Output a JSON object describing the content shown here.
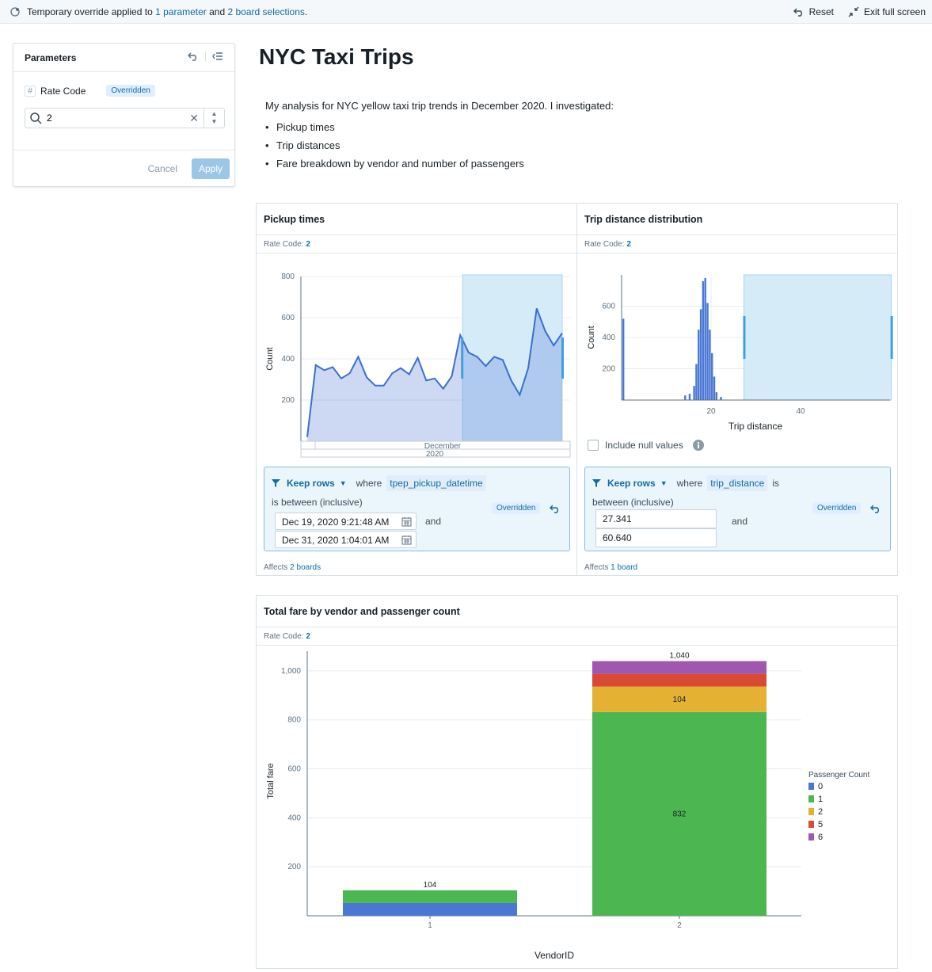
{
  "topbar": {
    "message_prefix": "Temporary override applied to ",
    "param_link": "1 parameter",
    "and": " and ",
    "board_link": "2 board selections",
    "period": ".",
    "reset": "Reset",
    "exit": "Exit full screen"
  },
  "parameters": {
    "title": "Parameters",
    "name": "Rate Code",
    "badge": "Overridden",
    "value": "2",
    "cancel": "Cancel",
    "apply": "Apply"
  },
  "page": {
    "title": "NYC Taxi Trips",
    "intro": "My analysis for NYC yellow taxi trip trends in December 2020. I investigated:",
    "bullets": [
      "Pickup times",
      "Trip distances",
      "Fare breakdown by vendor and number of passengers"
    ]
  },
  "pickup": {
    "title": "Pickup times",
    "rate_label": "Rate Code: ",
    "rate_value": "2",
    "keep": "Keep rows",
    "where": "where",
    "column": "tpep_pickup_datetime",
    "condition": "is between (inclusive)",
    "from": "Dec 19, 2020 9:21:48 AM",
    "and": "and",
    "to": "Dec 31, 2020 1:04:01 AM",
    "badge": "Overridden",
    "affects_prefix": "Affects ",
    "affects_link": "2 boards"
  },
  "distance": {
    "title": "Trip distance distribution",
    "rate_label": "Rate Code: ",
    "rate_value": "2",
    "include_null": "Include null values",
    "keep": "Keep rows",
    "where": "where",
    "column": "trip_distance",
    "is": "is",
    "condition": "between (inclusive)",
    "from": "27.341",
    "and": "and",
    "to": "60.640",
    "badge": "Overridden",
    "affects_prefix": "Affects ",
    "affects_link": "1 board"
  },
  "fare": {
    "title": "Total fare by vendor and passenger count",
    "rate_label": "Rate Code: ",
    "rate_value": "2"
  },
  "chart_data": [
    {
      "type": "area",
      "title": "Pickup times",
      "ylabel": "Count",
      "xlabel": "December",
      "x_tick_labels": [
        "December",
        "2020"
      ],
      "yticks": [
        200,
        400,
        600,
        800
      ],
      "ylim": [
        0,
        800
      ],
      "x": [
        1,
        2,
        3,
        4,
        5,
        6,
        7,
        8,
        9,
        10,
        11,
        12,
        13,
        14,
        15,
        16,
        17,
        18,
        19,
        20,
        21,
        22,
        23,
        24,
        25,
        26,
        27,
        28,
        29,
        30,
        31
      ],
      "values": [
        20,
        370,
        345,
        360,
        305,
        330,
        410,
        310,
        270,
        270,
        330,
        355,
        325,
        405,
        295,
        305,
        255,
        315,
        515,
        430,
        410,
        365,
        410,
        395,
        295,
        225,
        355,
        645,
        535,
        465,
        525
      ],
      "selection": {
        "from_day": 19,
        "to_day": 31
      }
    },
    {
      "type": "bar",
      "title": "Trip distance distribution",
      "xlabel": "Trip distance",
      "ylabel": "Count",
      "xticks": [
        20,
        40
      ],
      "yticks": [
        200,
        400,
        600
      ],
      "xlim": [
        0,
        60
      ],
      "ylim": [
        0,
        800
      ],
      "x": [
        0,
        14,
        15,
        16,
        16.5,
        17,
        17.5,
        18,
        18.5,
        19,
        19.5,
        20,
        20.5,
        21,
        22
      ],
      "values": [
        520,
        30,
        40,
        90,
        230,
        450,
        580,
        760,
        780,
        620,
        450,
        300,
        150,
        50,
        20
      ],
      "selection": {
        "from": 27.341,
        "to": 60.64
      }
    },
    {
      "type": "bar",
      "stacked": true,
      "title": "Total fare by vendor and passenger count",
      "xlabel": "VendorID",
      "ylabel": "Total fare",
      "ylim": [
        0,
        1100
      ],
      "yticks": [
        200,
        400,
        600,
        800,
        1000
      ],
      "ytick_labels": [
        "200",
        "400",
        "600",
        "800",
        "1,000"
      ],
      "legend_title": "Passenger Count",
      "categories": [
        "1",
        "2"
      ],
      "series": [
        {
          "name": "0",
          "color": "#4a77d4",
          "values": [
            52,
            0
          ]
        },
        {
          "name": "1",
          "color": "#4cb751",
          "values": [
            52,
            832
          ]
        },
        {
          "name": "2",
          "color": "#e4b133",
          "values": [
            0,
            104
          ]
        },
        {
          "name": "5",
          "color": "#d94a34",
          "values": [
            0,
            52
          ]
        },
        {
          "name": "6",
          "color": "#9f58b0",
          "values": [
            0,
            52
          ]
        }
      ],
      "totals": [
        104,
        1040
      ],
      "total_labels": [
        "104",
        "1,040"
      ],
      "segment_labels": [
        {
          "category": "2",
          "series": "1",
          "text": "832"
        },
        {
          "category": "2",
          "series": "2",
          "text": "104"
        }
      ]
    }
  ]
}
